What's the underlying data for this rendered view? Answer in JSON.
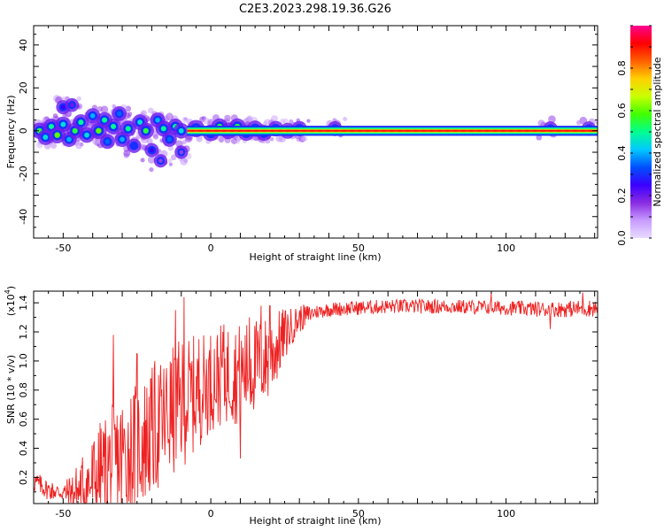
{
  "title": "C2E3.2023.298.19.36.G26",
  "chart_data": [
    {
      "type": "heatmap",
      "xlabel": "Height of straight line (km)",
      "ylabel": "Frequency (Hz)",
      "xlim": [
        -60,
        131
      ],
      "ylim": [
        -50,
        49
      ],
      "x_ticks": [
        -50,
        0,
        50,
        100
      ],
      "y_ticks": [
        -40,
        -20,
        0,
        20,
        40
      ],
      "colorbar": {
        "label": "Normalized spectral amplitude",
        "range": [
          0,
          1
        ],
        "ticks": [
          0.0,
          0.2,
          0.4,
          0.6,
          0.8
        ],
        "colors": [
          "#e8dcff",
          "#c79bff",
          "#8a2be2",
          "#3a00ff",
          "#0050ff",
          "#00c8ff",
          "#00ff90",
          "#40ff00",
          "#c8ff00",
          "#ffd000",
          "#ff6000",
          "#ff0000",
          "#ff0090"
        ]
      },
      "ridge_freq_hz": 0,
      "ridge_band_hz": [
        -1.5,
        1.5
      ],
      "ridge_start_km": -8,
      "blobs": [
        {
          "x": -58,
          "y": 0,
          "a": 0.55
        },
        {
          "x": -56,
          "y": -3,
          "a": 0.45
        },
        {
          "x": -54,
          "y": 2,
          "a": 0.5
        },
        {
          "x": -52,
          "y": -2,
          "a": 0.6
        },
        {
          "x": -50,
          "y": 3,
          "a": 0.45
        },
        {
          "x": -50,
          "y": 11,
          "a": 0.25
        },
        {
          "x": -47,
          "y": 12,
          "a": 0.2
        },
        {
          "x": -48,
          "y": -4,
          "a": 0.4
        },
        {
          "x": -46,
          "y": 0,
          "a": 0.55
        },
        {
          "x": -44,
          "y": 4,
          "a": 0.5
        },
        {
          "x": -42,
          "y": -2,
          "a": 0.45
        },
        {
          "x": -40,
          "y": 7,
          "a": 0.4
        },
        {
          "x": -38,
          "y": 0,
          "a": 0.6
        },
        {
          "x": -36,
          "y": 5,
          "a": 0.5
        },
        {
          "x": -35,
          "y": -5,
          "a": 0.35
        },
        {
          "x": -33,
          "y": 2,
          "a": 0.5
        },
        {
          "x": -31,
          "y": 8,
          "a": 0.35
        },
        {
          "x": -30,
          "y": -4,
          "a": 0.4
        },
        {
          "x": -28,
          "y": 1,
          "a": 0.5
        },
        {
          "x": -26,
          "y": -7,
          "a": 0.3
        },
        {
          "x": -24,
          "y": 4,
          "a": 0.45
        },
        {
          "x": -22,
          "y": 0,
          "a": 0.55
        },
        {
          "x": -20,
          "y": -9,
          "a": 0.25
        },
        {
          "x": -18,
          "y": 5,
          "a": 0.4
        },
        {
          "x": -17,
          "y": -14,
          "a": 0.15
        },
        {
          "x": -16,
          "y": 1,
          "a": 0.5
        },
        {
          "x": -14,
          "y": -4,
          "a": 0.35
        },
        {
          "x": -12,
          "y": 2,
          "a": 0.5
        },
        {
          "x": -10,
          "y": -10,
          "a": 0.15
        },
        {
          "x": -10,
          "y": 0,
          "a": 0.45
        },
        {
          "x": -5,
          "y": 1,
          "a": 0.7
        },
        {
          "x": 0,
          "y": -1,
          "a": 0.6
        },
        {
          "x": 3,
          "y": 2,
          "a": 0.55
        },
        {
          "x": 6,
          "y": 0,
          "a": 0.6
        },
        {
          "x": 9,
          "y": 2,
          "a": 0.55
        },
        {
          "x": 12,
          "y": -1,
          "a": 0.5
        },
        {
          "x": 15,
          "y": 1,
          "a": 0.55
        },
        {
          "x": 18,
          "y": -1,
          "a": 0.5
        },
        {
          "x": 22,
          "y": 1,
          "a": 0.45
        },
        {
          "x": 26,
          "y": 0,
          "a": 0.5
        },
        {
          "x": 30,
          "y": 1,
          "a": 0.4
        },
        {
          "x": 42,
          "y": 1,
          "a": 0.35
        },
        {
          "x": 115,
          "y": 1,
          "a": 0.3
        },
        {
          "x": 128,
          "y": 1,
          "a": 0.3
        }
      ]
    },
    {
      "type": "line",
      "xlabel": "Height of straight line (km)",
      "ylabel": "SNR (10 * v/v)",
      "y_multiplier": "(x10",
      "y_multiplier_exp": "4",
      "y_multiplier_close": ")",
      "xlim": [
        -60,
        131
      ],
      "ylim": [
        0.02,
        1.48
      ],
      "x_ticks": [
        -50,
        0,
        50,
        100
      ],
      "y_ticks": [
        0.2,
        0.4,
        0.6,
        0.8,
        1.0,
        1.2,
        1.4
      ],
      "y_tick_labels": [
        "0.2",
        "0.4",
        "0.6",
        "0.8",
        "1.0",
        "1.2",
        "1.4"
      ],
      "color": "#ee2222",
      "trend": [
        [
          -60,
          0.18
        ],
        [
          -55,
          0.12
        ],
        [
          -50,
          0.1
        ],
        [
          -45,
          0.12
        ],
        [
          -40,
          0.2
        ],
        [
          -35,
          0.3
        ],
        [
          -30,
          0.38
        ],
        [
          -25,
          0.45
        ],
        [
          -20,
          0.55
        ],
        [
          -15,
          0.65
        ],
        [
          -10,
          0.75
        ],
        [
          -5,
          0.82
        ],
        [
          0,
          0.9
        ],
        [
          5,
          0.95
        ],
        [
          10,
          0.95
        ],
        [
          15,
          1.0
        ],
        [
          20,
          1.05
        ],
        [
          25,
          1.2
        ],
        [
          30,
          1.3
        ],
        [
          35,
          1.34
        ],
        [
          40,
          1.36
        ],
        [
          60,
          1.38
        ],
        [
          80,
          1.38
        ],
        [
          100,
          1.37
        ],
        [
          115,
          1.36
        ],
        [
          131,
          1.37
        ]
      ],
      "noise": [
        [
          -60,
          0.08
        ],
        [
          -50,
          0.06
        ],
        [
          -40,
          0.35
        ],
        [
          -30,
          0.45
        ],
        [
          -20,
          0.45
        ],
        [
          -10,
          0.45
        ],
        [
          0,
          0.35
        ],
        [
          10,
          0.35
        ],
        [
          20,
          0.3
        ],
        [
          28,
          0.12
        ],
        [
          35,
          0.05
        ],
        [
          100,
          0.05
        ],
        [
          131,
          0.06
        ]
      ],
      "spikes": [
        {
          "x": -33,
          "y": 1.18
        },
        {
          "x": -25,
          "y": 1.05
        },
        {
          "x": -19,
          "y": 1.0
        },
        {
          "x": -12,
          "y": 1.35
        },
        {
          "x": -9,
          "y": 1.44
        },
        {
          "x": -4,
          "y": 1.15
        },
        {
          "x": 4,
          "y": 1.2
        },
        {
          "x": 10,
          "y": 0.33
        },
        {
          "x": 13,
          "y": 1.3
        },
        {
          "x": 17,
          "y": 1.38
        },
        {
          "x": 20,
          "y": 1.38
        },
        {
          "x": 95,
          "y": 1.47
        },
        {
          "x": 115,
          "y": 1.22
        },
        {
          "x": 126,
          "y": 1.47
        }
      ]
    }
  ]
}
